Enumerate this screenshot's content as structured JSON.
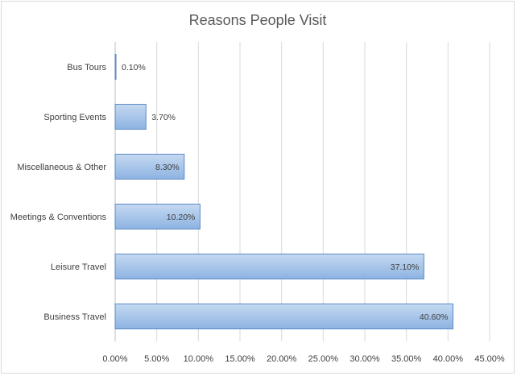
{
  "chart_data": {
    "type": "bar",
    "orientation": "horizontal",
    "title": "Reasons People Visit",
    "categories": [
      "Bus Tours",
      "Sporting Events",
      "Miscellaneous & Other",
      "Meetings & Conventions",
      "Leisure Travel",
      "Business Travel"
    ],
    "values": [
      0.1,
      3.7,
      8.3,
      10.2,
      37.1,
      40.6
    ],
    "data_labels": [
      "0.10%",
      "3.70%",
      "8.30%",
      "10.20%",
      "37.10%",
      "40.60%"
    ],
    "x_ticks": [
      "0.00%",
      "5.00%",
      "10.00%",
      "15.00%",
      "20.00%",
      "25.00%",
      "30.00%",
      "35.00%",
      "40.00%",
      "45.00%"
    ],
    "xlim": [
      0,
      45
    ],
    "grid": true,
    "legend": "none",
    "bar_color_top": "#c5d9f1",
    "bar_color_bottom": "#8db3e2",
    "bar_border_color": "#5b8ac6"
  }
}
